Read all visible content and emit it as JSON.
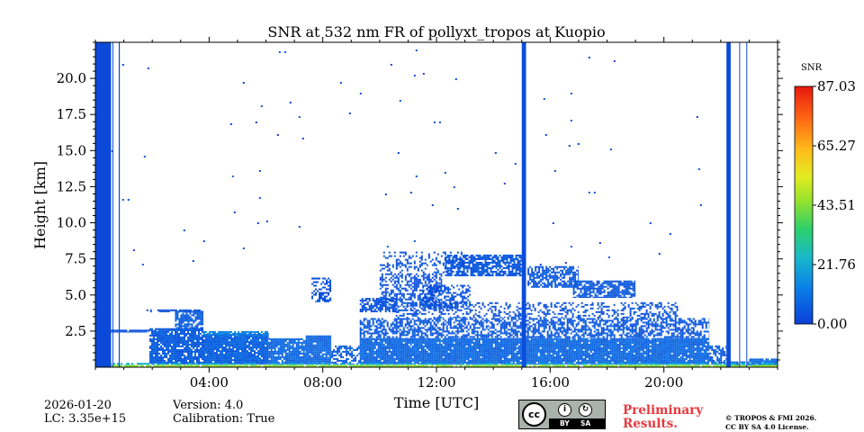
{
  "chart_data": {
    "type": "heatmap",
    "title": "SNR at 532 nm FR of pollyxt_tropos at Kuopio",
    "xlabel": "Time [UTC]",
    "ylabel": "Height [km]",
    "xlim_hours": [
      0,
      24
    ],
    "ylim_km": [
      0,
      22.5
    ],
    "x_ticks": [
      {
        "hour": 4,
        "label": "04:00"
      },
      {
        "hour": 8,
        "label": "08:00"
      },
      {
        "hour": 12,
        "label": "12:00"
      },
      {
        "hour": 16,
        "label": "16:00"
      },
      {
        "hour": 20,
        "label": "20:00"
      }
    ],
    "y_ticks": [
      {
        "km": 2.5,
        "label": "2.5"
      },
      {
        "km": 5.0,
        "label": "5.0"
      },
      {
        "km": 7.5,
        "label": "7.5"
      },
      {
        "km": 10.0,
        "label": "10.0"
      },
      {
        "km": 12.5,
        "label": "12.5"
      },
      {
        "km": 15.0,
        "label": "15.0"
      },
      {
        "km": 17.5,
        "label": "17.5"
      },
      {
        "km": 20.0,
        "label": "20.0"
      }
    ],
    "colorbar": {
      "label": "SNR",
      "min": 0.0,
      "max": 87.03,
      "ticks": [
        {
          "value": 0.0,
          "label": "0.00"
        },
        {
          "value": 21.76,
          "label": "21.76"
        },
        {
          "value": 43.51,
          "label": "43.51"
        },
        {
          "value": 65.27,
          "label": "65.27"
        },
        {
          "value": 87.03,
          "label": "87.03"
        }
      ]
    },
    "bands": [
      {
        "t0": 0.0,
        "t1": 0.55,
        "h0": 0.0,
        "h1": 22.5,
        "snr": 2
      },
      {
        "t0": 0.6,
        "t1": 0.62,
        "h0": 0.0,
        "h1": 22.5,
        "snr": 3
      },
      {
        "t0": 0.82,
        "t1": 0.86,
        "h0": 0.0,
        "h1": 22.5,
        "snr": 3
      },
      {
        "t0": 15.0,
        "t1": 15.15,
        "h0": 0.0,
        "h1": 22.5,
        "snr": 3
      },
      {
        "t0": 22.2,
        "t1": 22.35,
        "h0": 0.0,
        "h1": 22.5,
        "snr": 3
      },
      {
        "t0": 22.65,
        "t1": 22.68,
        "h0": 0.0,
        "h1": 22.5,
        "snr": 3
      },
      {
        "t0": 22.9,
        "t1": 22.93,
        "h0": 0.0,
        "h1": 22.5,
        "snr": 3
      }
    ],
    "regions": [
      {
        "t0": 0.55,
        "t1": 1.9,
        "h0": 2.4,
        "h1": 2.6,
        "snr": 4,
        "density": 0.95
      },
      {
        "t0": 1.9,
        "t1": 3.8,
        "h0": 2.5,
        "h1": 2.7,
        "snr": 5,
        "density": 0.9
      },
      {
        "t0": 1.9,
        "t1": 3.8,
        "h0": 0.2,
        "h1": 2.5,
        "snr": 6,
        "density": 0.85
      },
      {
        "t0": 1.8,
        "t1": 3.8,
        "h0": 3.8,
        "h1": 4.0,
        "snr": 4,
        "density": 0.7
      },
      {
        "t0": 2.8,
        "t1": 3.8,
        "h0": 2.5,
        "h1": 3.9,
        "snr": 6,
        "density": 0.75
      },
      {
        "t0": 3.8,
        "t1": 6.1,
        "h0": 0.2,
        "h1": 2.3,
        "snr": 7,
        "density": 0.95
      },
      {
        "t0": 3.8,
        "t1": 6.1,
        "h0": 2.2,
        "h1": 2.5,
        "snr": 14,
        "density": 0.8
      },
      {
        "t0": 6.1,
        "t1": 7.4,
        "h0": 0.2,
        "h1": 2.0,
        "snr": 8,
        "density": 0.9
      },
      {
        "t0": 7.4,
        "t1": 8.3,
        "h0": 0.2,
        "h1": 2.2,
        "snr": 8,
        "density": 0.95
      },
      {
        "t0": 8.3,
        "t1": 9.3,
        "h0": 0.2,
        "h1": 1.5,
        "snr": 6,
        "density": 0.5
      },
      {
        "t0": 9.3,
        "t1": 21.6,
        "h0": 0.2,
        "h1": 2.0,
        "snr": 8,
        "density": 0.95
      },
      {
        "t0": 9.3,
        "t1": 21.6,
        "h0": 2.0,
        "h1": 3.4,
        "snr": 5,
        "density": 0.6
      },
      {
        "t0": 10.5,
        "t1": 20.5,
        "h0": 3.4,
        "h1": 4.5,
        "snr": 4,
        "density": 0.35
      },
      {
        "t0": 7.6,
        "t1": 8.3,
        "h0": 4.5,
        "h1": 6.2,
        "snr": 4,
        "density": 0.45
      },
      {
        "t0": 9.3,
        "t1": 10.6,
        "h0": 3.8,
        "h1": 4.8,
        "snr": 4,
        "density": 0.7
      },
      {
        "t0": 10.0,
        "t1": 12.2,
        "h0": 4.2,
        "h1": 6.5,
        "snr": 4,
        "density": 0.5
      },
      {
        "t0": 11.5,
        "t1": 13.2,
        "h0": 4.0,
        "h1": 5.7,
        "snr": 4,
        "density": 0.55
      },
      {
        "t0": 12.3,
        "t1": 15.0,
        "h0": 6.3,
        "h1": 7.8,
        "snr": 5,
        "density": 0.75
      },
      {
        "t0": 15.2,
        "t1": 17.0,
        "h0": 5.5,
        "h1": 7.0,
        "snr": 5,
        "density": 0.65
      },
      {
        "t0": 16.8,
        "t1": 19.0,
        "h0": 4.8,
        "h1": 6.0,
        "snr": 5,
        "density": 0.75
      },
      {
        "t0": 10.0,
        "t1": 13.0,
        "h0": 6.5,
        "h1": 8.0,
        "snr": 4,
        "density": 0.25
      },
      {
        "t0": 0.5,
        "t1": 21.5,
        "h0": 7.0,
        "h1": 22.0,
        "snr": 3,
        "density": 0.0015
      },
      {
        "t0": 21.6,
        "t1": 22.2,
        "h0": 0.2,
        "h1": 1.5,
        "snr": 6,
        "density": 0.6
      },
      {
        "t0": 22.3,
        "t1": 23.0,
        "h0": 0.0,
        "h1": 0.4,
        "snr": 8,
        "density": 0.6
      },
      {
        "t0": 23.0,
        "t1": 24.0,
        "h0": 0.0,
        "h1": 0.6,
        "snr": 9,
        "density": 0.9
      },
      {
        "t0": 0.0,
        "t1": 24.0,
        "h0": 0.0,
        "h1": 0.15,
        "snr": 45,
        "density": 0.9
      },
      {
        "t0": 0.0,
        "t1": 24.0,
        "h0": 0.15,
        "h1": 0.3,
        "snr": 22,
        "density": 0.6
      }
    ]
  },
  "footer": {
    "date": "2026-01-20",
    "lc": "LC: 3.35e+15",
    "version": "Version: 4.0",
    "calibration": "Calibration: True",
    "preliminary_line1": "Preliminary",
    "preliminary_line2": "Results.",
    "copyright_line1": "© TROPOS & FMI 2026.",
    "copyright_line2": "CC BY SA 4.0 License."
  },
  "license_badge": {
    "cc": "cc",
    "by": "BY",
    "sa": "SA"
  }
}
